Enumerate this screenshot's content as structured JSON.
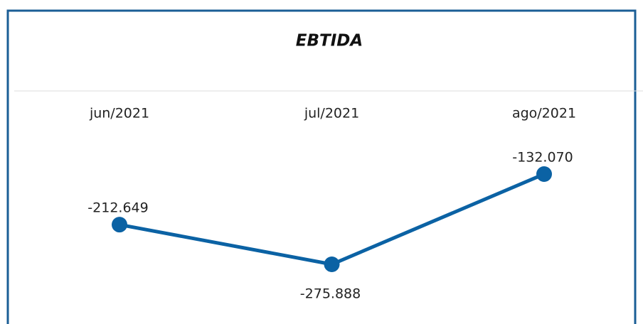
{
  "chart_data": {
    "type": "line",
    "title": "EBTIDA",
    "categories": [
      "jun/2021",
      "jul/2021",
      "ago/2021"
    ],
    "series": [
      {
        "name": "EBTIDA",
        "color": "#0b62a4",
        "values": [
          -212649,
          -275888,
          -132070
        ],
        "value_labels": [
          "-212.649",
          "-275.888",
          "-132.070"
        ]
      }
    ]
  }
}
